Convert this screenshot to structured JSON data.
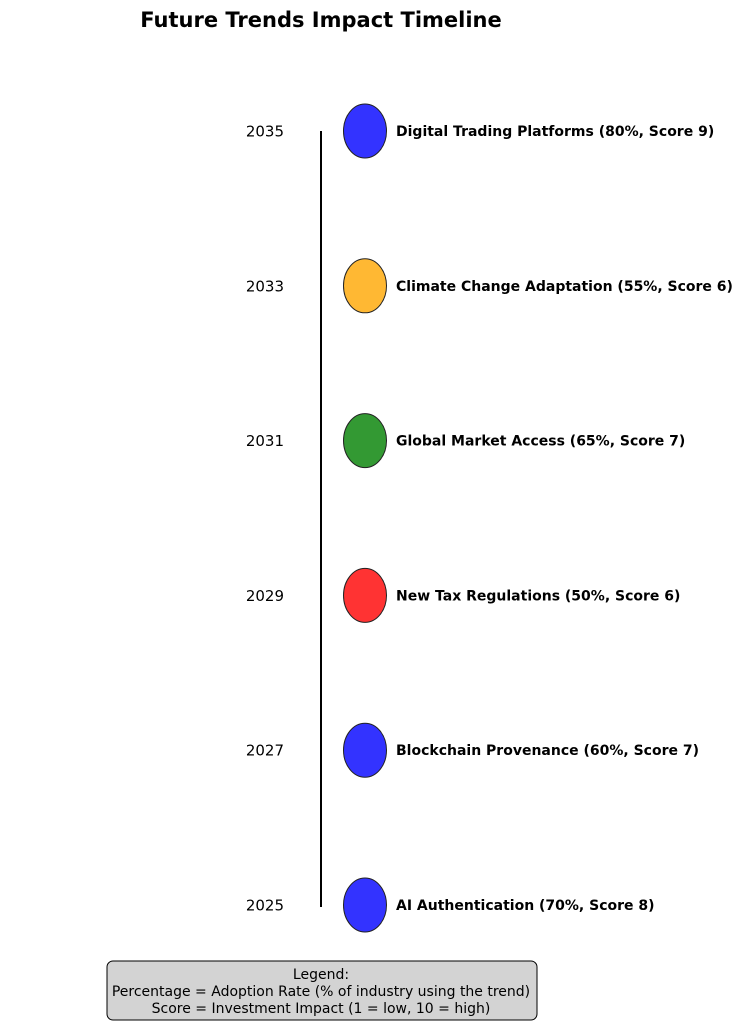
{
  "title": "Future Trends Impact Timeline",
  "events": [
    {
      "year": "2035",
      "label": "Digital Trading Platforms (80%, Score 9)",
      "color": "#3333ff"
    },
    {
      "year": "2033",
      "label": "Climate Change Adaptation (55%, Score 6)",
      "color": "#ffb833"
    },
    {
      "year": "2031",
      "label": "Global Market Access (65%, Score 7)",
      "color": "#339933"
    },
    {
      "year": "2029",
      "label": "New Tax Regulations (50%, Score 6)",
      "color": "#ff3333"
    },
    {
      "year": "2027",
      "label": "Blockchain Provenance (60%, Score 7)",
      "color": "#3333ff"
    },
    {
      "year": "2025",
      "label": "AI Authentication (70%, Score 8)",
      "color": "#3333ff"
    }
  ],
  "legend": {
    "heading": "Legend:",
    "line1": "Percentage = Adoption Rate (% of industry using the trend)",
    "line2": "Score = Investment Impact (1 = low, 10 = high)"
  }
}
